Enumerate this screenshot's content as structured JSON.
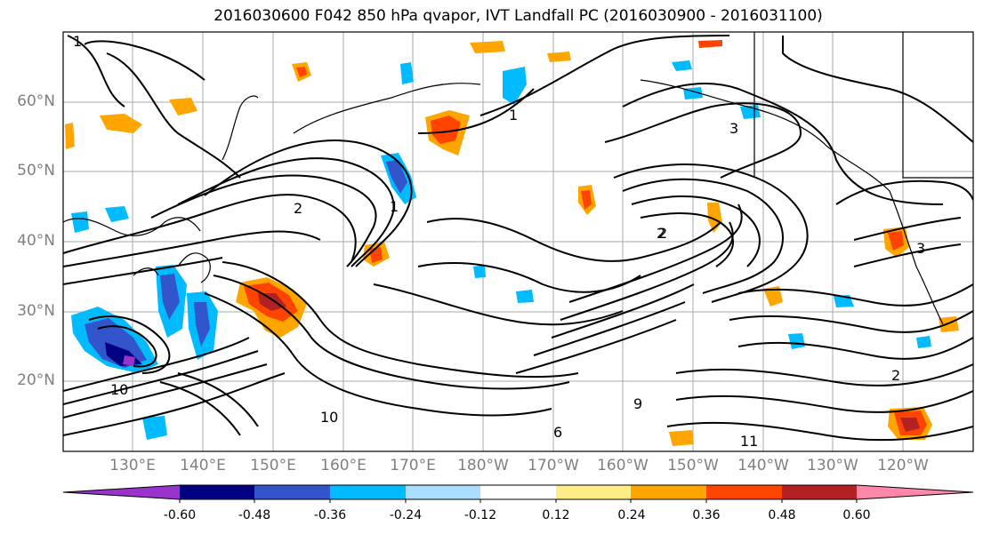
{
  "title": "2016030600 F042 850 hPa qvapor, IVT Landfall PC (2016030900 - 2016031100)",
  "map": {
    "lat_labels": [
      "60°N",
      "50°N",
      "40°N",
      "30°N",
      "20°N"
    ],
    "lon_labels": [
      "130°E",
      "140°E",
      "150°E",
      "160°E",
      "170°E",
      "180°W",
      "170°W",
      "160°W",
      "150°W",
      "140°W",
      "130°W",
      "120°W"
    ],
    "contour_labels": [
      "1",
      "1",
      "2",
      "2",
      "3",
      "3",
      "10",
      "10",
      "2",
      "2",
      "11",
      "9",
      "1",
      "6"
    ]
  },
  "colorbar": {
    "colors": [
      "#9933cc",
      "#000080",
      "#3355cc",
      "#00bbff",
      "#aaddff",
      "#ffffff",
      "#ffee88",
      "#ffa500",
      "#ff4400",
      "#b22222",
      "#ff88aa"
    ],
    "tick_labels": [
      "-0.60",
      "-0.48",
      "-0.36",
      "-0.24",
      "-0.12",
      "0.12",
      "0.24",
      "0.36",
      "0.48",
      "0.60"
    ]
  }
}
